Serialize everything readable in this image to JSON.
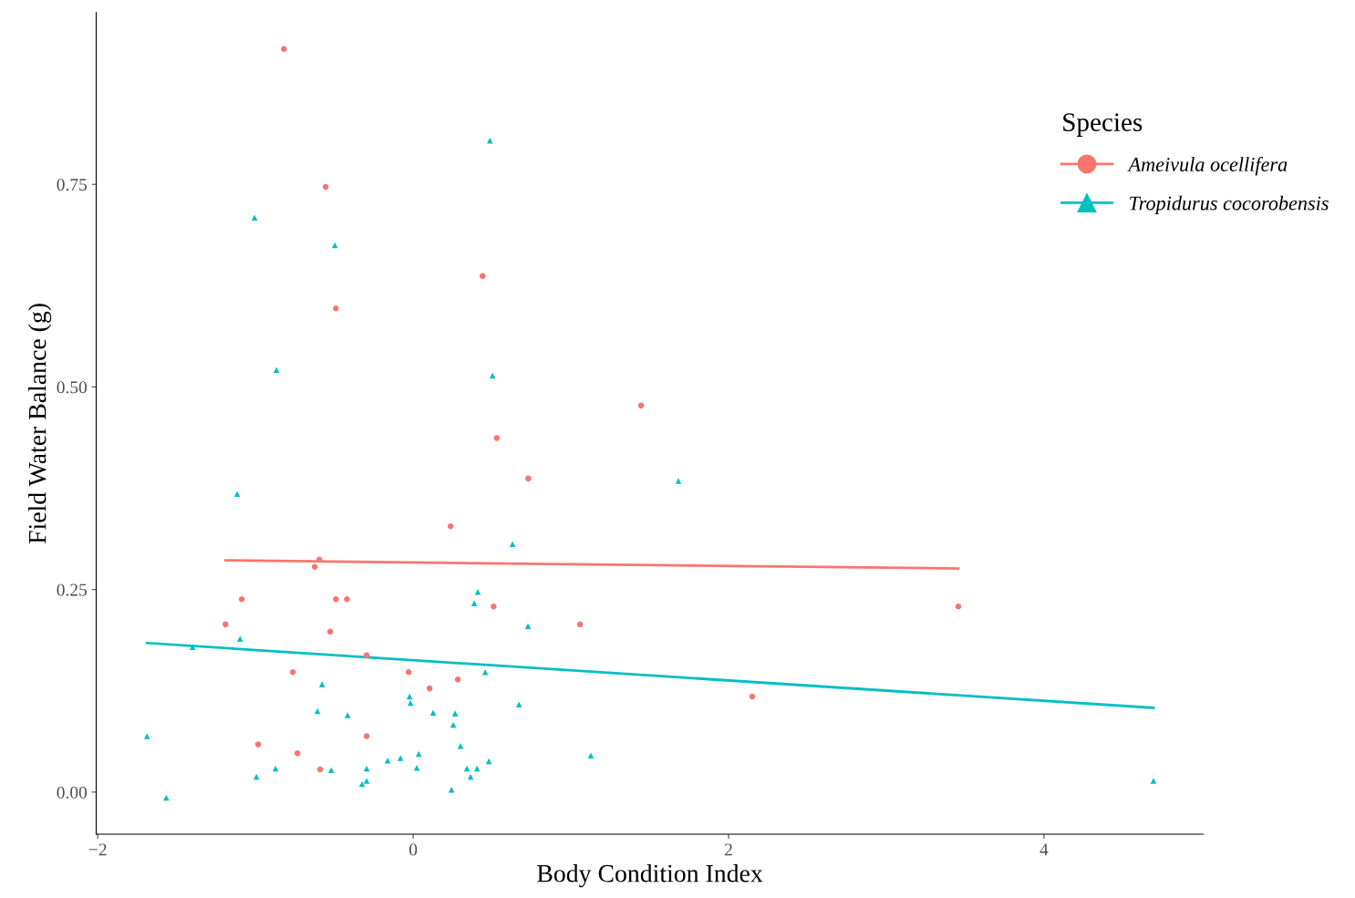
{
  "chart_data": {
    "type": "scatter",
    "xlabel": "Body Condition Index",
    "ylabel": "Field Water Balance (g)",
    "legend_title": "Species",
    "legend": "right",
    "grid": false,
    "xlim": [
      -2.01,
      5.01
    ],
    "ylim": [
      -0.052,
      0.962
    ],
    "xticks": [
      {
        "value": -2,
        "label": "−2"
      },
      0,
      2,
      4
    ],
    "yticks": [
      {
        "value": 0,
        "label": "0.00"
      },
      {
        "value": 0.25,
        "label": "0.25"
      },
      {
        "value": 0.5,
        "label": "0.50"
      },
      {
        "value": 0.75,
        "label": "0.75"
      }
    ],
    "series": [
      {
        "name": "Ameivula ocellifera",
        "marker": "circle",
        "color": "#f8766d",
        "x": [
          -0.82,
          -0.555,
          -0.49,
          0.44,
          1.445,
          0.53,
          0.73,
          0.237,
          -0.595,
          -0.624,
          -1.087,
          -0.49,
          -0.42,
          0.51,
          3.457,
          -1.19,
          1.058,
          -0.526,
          -0.295,
          -0.763,
          -0.029,
          0.283,
          0.104,
          2.15,
          -0.295,
          -0.983,
          -0.734,
          -0.59
        ],
        "values": [
          0.917,
          0.747,
          0.597,
          0.637,
          0.477,
          0.437,
          0.387,
          0.328,
          0.287,
          0.278,
          0.238,
          0.238,
          0.238,
          0.229,
          0.229,
          0.207,
          0.207,
          0.198,
          0.169,
          0.148,
          0.148,
          0.139,
          0.128,
          0.118,
          0.069,
          0.059,
          0.048,
          0.028
        ]
      },
      {
        "name": "Tropidurus cocorobensis",
        "marker": "triangle",
        "color": "#00bfc4",
        "x": [
          0.486,
          -1.006,
          -0.497,
          -0.867,
          0.503,
          1.682,
          -1.116,
          0.63,
          0.41,
          0.387,
          0.728,
          -1.098,
          -1.399,
          0.457,
          -0.578,
          -0.023,
          -0.017,
          0.671,
          -0.607,
          0.127,
          0.266,
          -0.416,
          0.254,
          -1.688,
          0.3,
          0.035,
          1.127,
          -0.081,
          -0.162,
          0.48,
          0.023,
          0.341,
          0.405,
          -0.295,
          -0.873,
          -0.52,
          -0.994,
          0.364,
          -0.295,
          -0.324,
          4.694,
          0.243,
          -1.566
        ],
        "values": [
          0.804,
          0.709,
          0.675,
          0.521,
          0.514,
          0.384,
          0.368,
          0.306,
          0.247,
          0.233,
          0.205,
          0.189,
          0.179,
          0.148,
          0.133,
          0.118,
          0.11,
          0.108,
          0.1,
          0.098,
          0.097,
          0.095,
          0.083,
          0.069,
          0.057,
          0.047,
          0.045,
          0.042,
          0.039,
          0.038,
          0.03,
          0.029,
          0.029,
          0.029,
          0.029,
          0.027,
          0.019,
          0.019,
          0.014,
          0.01,
          0.014,
          0.003,
          -0.007
        ]
      },
      {
        "type": "line",
        "color": "#f8766d",
        "x": [
          -1.19,
          3.457
        ],
        "values": [
          0.286,
          0.276
        ]
      },
      {
        "type": "line",
        "color": "#00bfc4",
        "x": [
          -1.688,
          4.694
        ],
        "values": [
          0.184,
          0.104
        ]
      }
    ]
  }
}
